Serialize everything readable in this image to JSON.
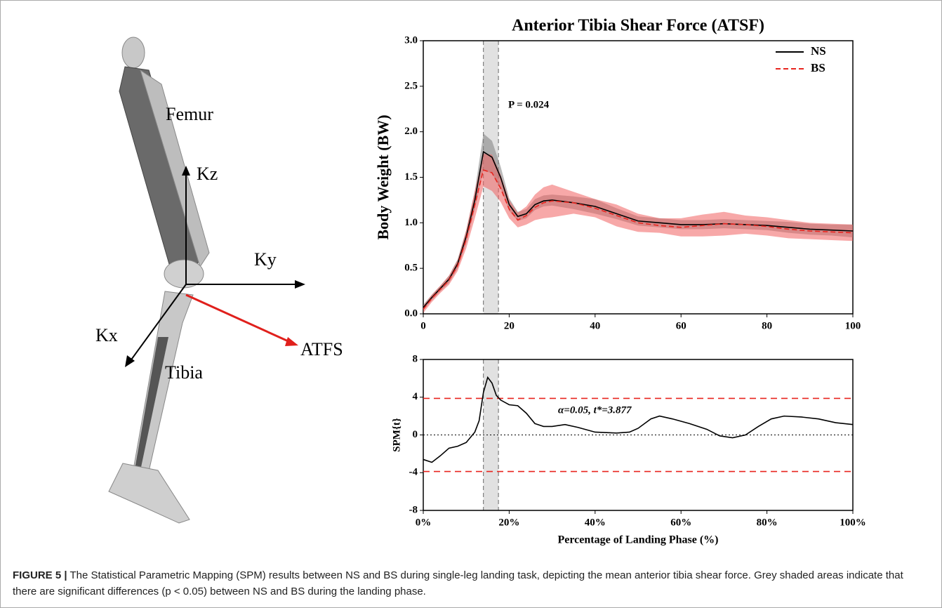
{
  "figure": {
    "caption_label": "FIGURE 5 |",
    "caption_text": "The Statistical Parametric Mapping (SPM) results between NS and BS during single-leg landing task, depicting the mean anterior tibia shear force. Grey shaded areas indicate that there are significant differences (p < 0.05) between NS and BS during the landing phase.",
    "diagram_labels": {
      "femur": "Femur",
      "kz": "Kz",
      "ky": "Ky",
      "kx": "Kx",
      "tibia": "Tibia",
      "atfs": "ATFS"
    }
  },
  "chart_data": [
    {
      "type": "line",
      "title": "Anterior Tibia Shear Force (ATSF)",
      "y_label": "Body Weight (BW)",
      "annotation": "P = 0.024",
      "shade": [
        14,
        17.5
      ],
      "x": [
        0,
        2,
        4,
        6,
        8,
        10,
        12,
        14,
        16,
        18,
        20,
        22,
        24,
        26,
        28,
        30,
        35,
        40,
        45,
        50,
        55,
        60,
        65,
        70,
        75,
        80,
        85,
        90,
        95,
        100
      ],
      "series": [
        {
          "name": "NS",
          "color": "#000000",
          "band_color": "#808080",
          "dash": false,
          "values": [
            0.07,
            0.18,
            0.28,
            0.38,
            0.55,
            0.85,
            1.25,
            1.78,
            1.72,
            1.5,
            1.2,
            1.07,
            1.1,
            1.2,
            1.24,
            1.25,
            1.22,
            1.18,
            1.1,
            1.02,
            1.0,
            0.98,
            0.98,
            0.99,
            0.98,
            0.97,
            0.95,
            0.93,
            0.92,
            0.91
          ],
          "lower": [
            0.04,
            0.15,
            0.25,
            0.34,
            0.5,
            0.78,
            1.15,
            1.58,
            1.54,
            1.38,
            1.13,
            1.02,
            1.05,
            1.14,
            1.18,
            1.19,
            1.15,
            1.1,
            1.04,
            0.97,
            0.95,
            0.93,
            0.93,
            0.94,
            0.93,
            0.92,
            0.89,
            0.87,
            0.86,
            0.84
          ],
          "upper": [
            0.1,
            0.21,
            0.31,
            0.42,
            0.6,
            0.92,
            1.35,
            1.98,
            1.9,
            1.62,
            1.27,
            1.12,
            1.15,
            1.26,
            1.3,
            1.31,
            1.29,
            1.26,
            1.16,
            1.07,
            1.05,
            1.03,
            1.03,
            1.04,
            1.03,
            1.02,
            1.01,
            0.99,
            0.98,
            0.98
          ]
        },
        {
          "name": "BS",
          "color": "#e8251f",
          "band_color": "#f06060",
          "dash": true,
          "values": [
            0.05,
            0.17,
            0.27,
            0.37,
            0.53,
            0.82,
            1.2,
            1.58,
            1.55,
            1.38,
            1.15,
            1.03,
            1.08,
            1.17,
            1.22,
            1.24,
            1.22,
            1.16,
            1.08,
            1.0,
            0.97,
            0.95,
            0.97,
            0.99,
            0.98,
            0.96,
            0.93,
            0.91,
            0.9,
            0.89
          ],
          "lower": [
            0.01,
            0.13,
            0.23,
            0.32,
            0.47,
            0.72,
            1.05,
            1.4,
            1.35,
            1.23,
            1.05,
            0.95,
            0.98,
            1.03,
            1.05,
            1.06,
            1.1,
            1.06,
            0.96,
            0.9,
            0.89,
            0.85,
            0.85,
            0.86,
            0.88,
            0.86,
            0.83,
            0.82,
            0.81,
            0.8
          ],
          "upper": [
            0.09,
            0.21,
            0.31,
            0.42,
            0.59,
            0.92,
            1.35,
            1.76,
            1.75,
            1.53,
            1.25,
            1.11,
            1.18,
            1.31,
            1.39,
            1.42,
            1.34,
            1.26,
            1.2,
            1.1,
            1.05,
            1.05,
            1.09,
            1.12,
            1.08,
            1.06,
            1.03,
            1.0,
            0.99,
            0.98
          ]
        }
      ],
      "xlim": [
        0,
        100
      ],
      "xticks": [
        0,
        20,
        40,
        60,
        80,
        100
      ],
      "ylim": [
        0,
        3
      ],
      "yticks": [
        {
          "value": 0,
          "label": "0.0"
        },
        {
          "value": 0.5,
          "label": "0.5"
        },
        {
          "value": 1,
          "label": "1.0"
        },
        {
          "value": 1.5,
          "label": "1.5"
        },
        {
          "value": 2,
          "label": "2.0"
        },
        {
          "value": 2.5,
          "label": "2.5"
        },
        {
          "value": 3,
          "label": "3.0"
        }
      ],
      "legend": "top-right"
    },
    {
      "type": "spm",
      "y_label": "SPM{t}",
      "x_label": "Percentage of Landing Phase (%)",
      "annotation": "α=0.05, t*=3.877",
      "shade": [
        14,
        17.5
      ],
      "thresholds": [
        3.877,
        -3.877
      ],
      "zero_line": 0,
      "x": [
        0,
        2,
        4,
        6,
        8,
        10,
        12,
        13,
        14,
        15,
        16,
        17,
        18,
        20,
        22,
        24,
        26,
        28,
        30,
        33,
        36,
        40,
        45,
        48,
        50,
        53,
        55,
        58,
        62,
        66,
        69,
        72,
        75,
        78,
        81,
        84,
        88,
        92,
        96,
        100
      ],
      "series": [
        {
          "color": "#000000",
          "values": [
            -2.6,
            -2.9,
            -2.2,
            -1.4,
            -1.2,
            -0.8,
            0.3,
            1.5,
            4.5,
            6.1,
            5.5,
            4.2,
            3.7,
            3.2,
            3.1,
            2.3,
            1.2,
            0.9,
            0.9,
            1.1,
            0.8,
            0.3,
            0.2,
            0.3,
            0.7,
            1.7,
            2.0,
            1.7,
            1.2,
            0.6,
            -0.1,
            -0.3,
            0.0,
            0.9,
            1.7,
            2.0,
            1.9,
            1.7,
            1.3,
            1.1
          ]
        }
      ],
      "xlim": [
        0,
        100
      ],
      "xticks": [
        {
          "value": 0,
          "label": "0%"
        },
        {
          "value": 20,
          "label": "20%"
        },
        {
          "value": 40,
          "label": "40%"
        },
        {
          "value": 60,
          "label": "60%"
        },
        {
          "value": 80,
          "label": "80%"
        },
        {
          "value": 100,
          "label": "100%"
        }
      ],
      "ylim": [
        -8,
        8
      ],
      "yticks": [
        8,
        4,
        0,
        -4,
        -8
      ]
    }
  ]
}
